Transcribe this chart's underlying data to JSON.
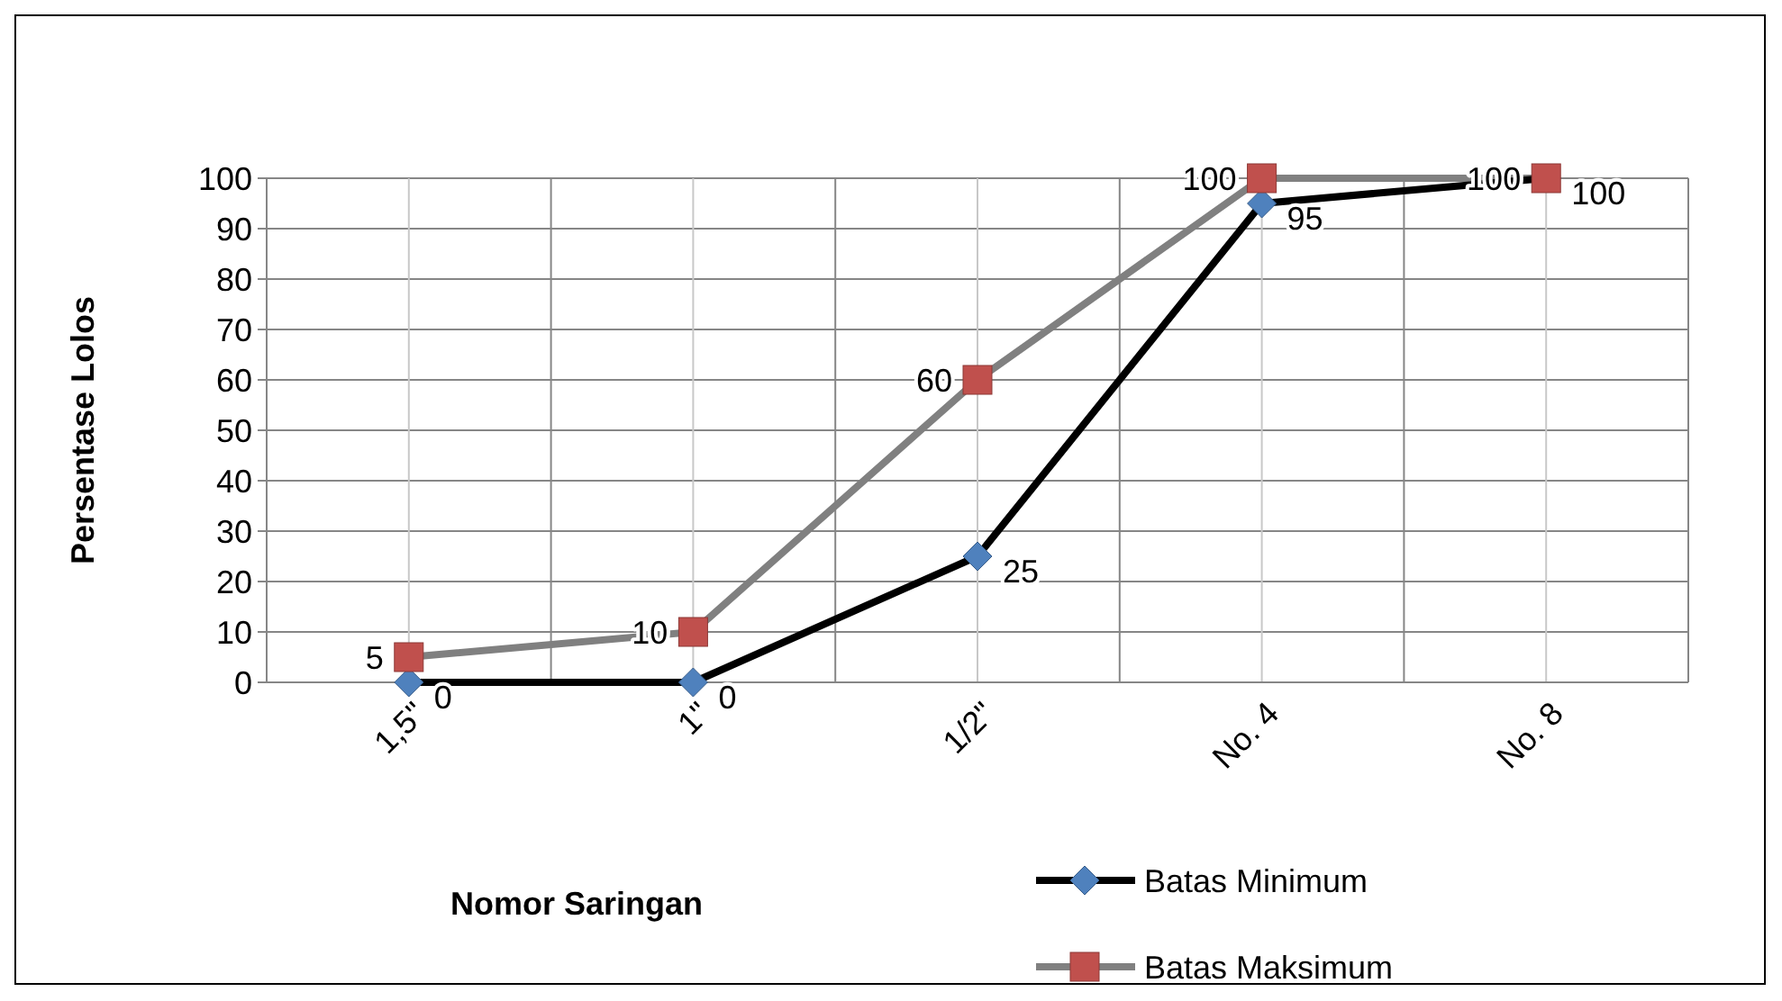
{
  "chart_data": {
    "type": "line",
    "xlabel": "Nomor Saringan",
    "ylabel": "Persentase Lolos",
    "categories": [
      "1,5\"",
      "1\"",
      "1/2\"",
      "No. 4",
      "No. 8"
    ],
    "series": [
      {
        "name": "Batas Minimum",
        "color": "#000000",
        "marker": "diamond",
        "values": [
          0,
          0,
          25,
          95,
          100
        ]
      },
      {
        "name": "Batas Maksimum",
        "color": "#808080",
        "marker": "square",
        "values": [
          5,
          10,
          60,
          100,
          100
        ]
      }
    ],
    "ylim": [
      0,
      100
    ],
    "yticks": [
      0,
      10,
      20,
      30,
      40,
      50,
      60,
      70,
      80,
      90,
      100
    ],
    "grid": true,
    "legend": "bottom right",
    "data_labels": true
  }
}
